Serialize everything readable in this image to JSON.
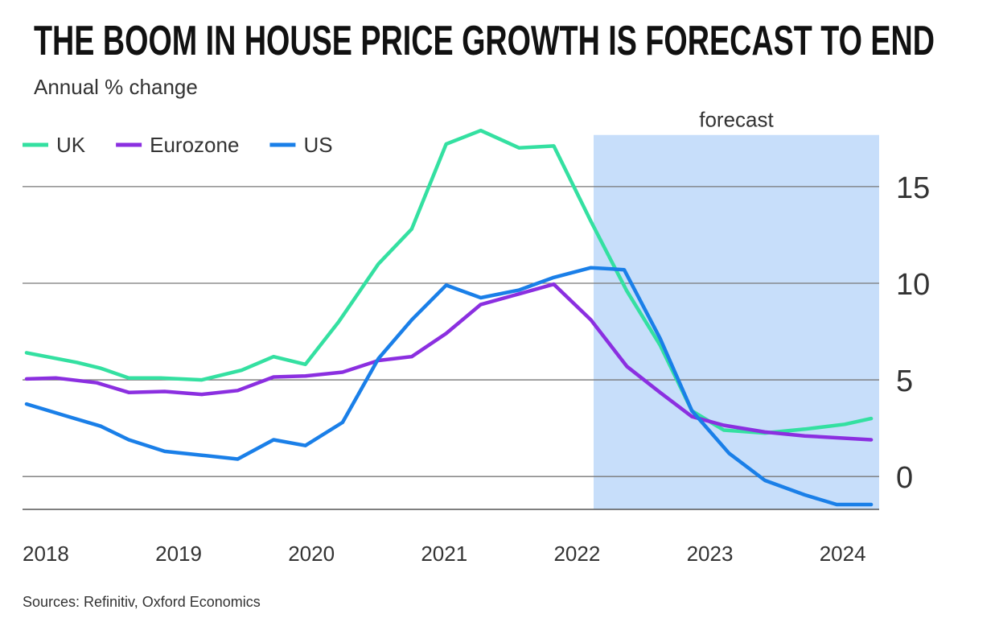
{
  "chart_data": {
    "type": "line",
    "title": "THE BOOM IN HOUSE PRICE GROWTH IS FORECAST TO END",
    "subtitle": "Annual % change",
    "source": "Sources: Refinitiv, Oxford Economics",
    "xlim": [
      2018,
      2024.45
    ],
    "xticks": [
      2018,
      2019,
      2020,
      2021,
      2022,
      2023,
      2024
    ],
    "ylim": [
      -1.7,
      18.2
    ],
    "yticks": [
      0,
      5,
      10,
      15
    ],
    "grid": true,
    "legend": "top-left",
    "shaded_region": {
      "label": "forecast",
      "xrange": [
        2022.3,
        2024.45
      ],
      "top": 17.67,
      "color": "#c7defa"
    },
    "series": [
      {
        "name": "UK",
        "color": "#34e0a1",
        "x": [
          2018.03,
          2018.41,
          2018.59,
          2018.8,
          2019.04,
          2019.35,
          2019.65,
          2019.89,
          2020.13,
          2020.38,
          2020.68,
          2020.93,
          2021.19,
          2021.45,
          2021.74,
          2022.0,
          2022.28,
          2022.55,
          2022.8,
          2023.04,
          2023.28,
          2023.59,
          2023.89,
          2024.19,
          2024.39
        ],
        "values": [
          6.4,
          5.9,
          5.6,
          5.1,
          5.1,
          5.0,
          5.5,
          6.2,
          5.8,
          8.0,
          11.0,
          12.8,
          17.2,
          17.9,
          17.0,
          17.1,
          13.2,
          9.6,
          6.8,
          3.4,
          2.4,
          2.25,
          2.45,
          2.7,
          3.0
        ]
      },
      {
        "name": "Eurozone",
        "color": "#8b2fe0",
        "x": [
          2018.03,
          2018.25,
          2018.56,
          2018.8,
          2019.07,
          2019.35,
          2019.62,
          2019.89,
          2020.13,
          2020.41,
          2020.68,
          2020.93,
          2021.19,
          2021.45,
          2021.74,
          2022.0,
          2022.28,
          2022.55,
          2022.8,
          2023.04,
          2023.28,
          2023.59,
          2023.89,
          2024.39
        ],
        "values": [
          5.05,
          5.1,
          4.85,
          4.35,
          4.4,
          4.25,
          4.45,
          5.15,
          5.2,
          5.4,
          6.0,
          6.2,
          7.4,
          8.9,
          9.45,
          9.95,
          8.1,
          5.7,
          4.35,
          3.1,
          2.65,
          2.3,
          2.1,
          1.9
        ]
      },
      {
        "name": "US",
        "color": "#1a7fe8",
        "x": [
          2018.03,
          2018.32,
          2018.59,
          2018.8,
          2019.07,
          2019.35,
          2019.62,
          2019.89,
          2020.13,
          2020.41,
          2020.68,
          2020.93,
          2021.19,
          2021.45,
          2021.74,
          2022.0,
          2022.28,
          2022.53,
          2022.8,
          2023.04,
          2023.32,
          2023.59,
          2023.89,
          2024.13,
          2024.39
        ],
        "values": [
          3.75,
          3.15,
          2.6,
          1.9,
          1.3,
          1.1,
          0.9,
          1.9,
          1.6,
          2.8,
          6.1,
          8.1,
          9.9,
          9.25,
          9.65,
          10.3,
          10.8,
          10.7,
          7.15,
          3.4,
          1.2,
          -0.2,
          -0.95,
          -1.45,
          -1.45
        ]
      }
    ]
  }
}
